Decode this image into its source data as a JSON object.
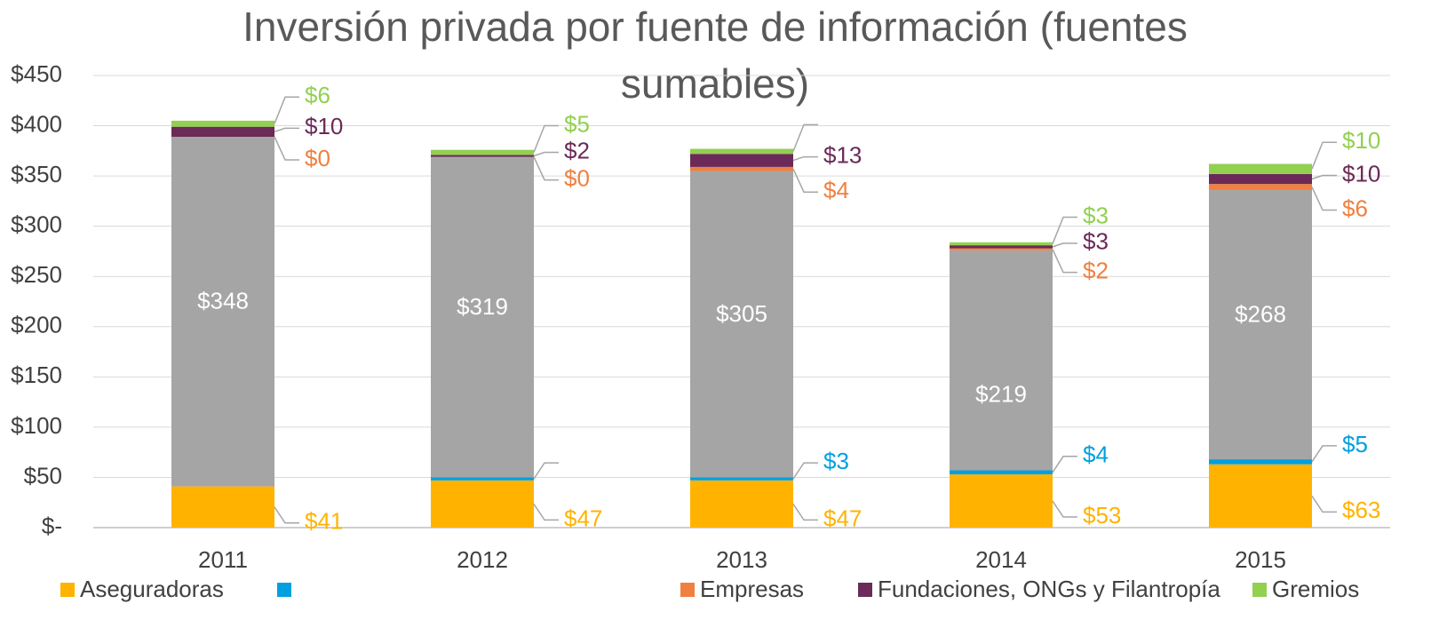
{
  "chart_data": {
    "type": "stacked_bar",
    "title": [
      "Inversión privada por fuente de información (fuentes",
      "sumables)"
    ],
    "categories": [
      "2011",
      "2012",
      "2013",
      "2014",
      "2015"
    ],
    "series": [
      {
        "name": "Aseguradoras",
        "color": "#FFB300",
        "values": [
          41,
          47,
          47,
          53,
          63
        ],
        "value_labels": [
          "$41",
          "$47",
          "$47",
          "$53",
          "$63"
        ]
      },
      {
        "name": null,
        "color": "#00A0E0",
        "values": [
          0,
          3,
          3,
          4,
          5
        ],
        "value_labels": [
          null,
          null,
          "$3",
          "$4",
          "$5"
        ]
      },
      {
        "color": "#A5A5A5",
        "values": [
          348,
          319,
          305,
          219,
          268
        ],
        "value_labels": [
          "$348",
          "$319",
          "$305",
          "$219",
          "$268"
        ]
      },
      {
        "name": "Empresas",
        "color": "#F08040",
        "values": [
          0,
          0,
          4,
          2,
          6
        ],
        "value_labels": [
          "$0",
          "$0",
          "$4",
          "$2",
          "$6"
        ]
      },
      {
        "name": "Fundaciones, ONGs y Filantropía",
        "color": "#6B2A57",
        "values": [
          10,
          2,
          13,
          3,
          10
        ],
        "value_labels": [
          "$10",
          "$2",
          "$13",
          "$3",
          "$10"
        ]
      },
      {
        "name": "Gremios",
        "color": "#92D050",
        "values": [
          6,
          5,
          5,
          3,
          10
        ],
        "value_labels": [
          "$6",
          "$5",
          null,
          "$3",
          "$10"
        ]
      }
    ],
    "ylim": [
      0,
      450
    ],
    "yticks": [
      {
        "value": 0,
        "label": "$-"
      },
      {
        "value": 50,
        "label": "$50"
      },
      {
        "value": 100,
        "label": "$100"
      },
      {
        "value": 150,
        "label": "$150"
      },
      {
        "value": 200,
        "label": "$200"
      },
      {
        "value": 250,
        "label": "$250"
      },
      {
        "value": 300,
        "label": "$300"
      },
      {
        "value": 350,
        "label": "$350"
      },
      {
        "value": 400,
        "label": "$400"
      },
      {
        "value": 450,
        "label": "$450"
      }
    ],
    "grid": true
  }
}
